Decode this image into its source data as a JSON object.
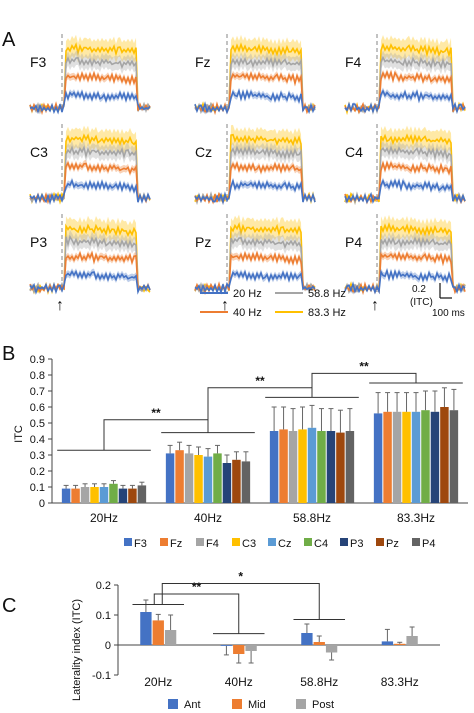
{
  "panel_labels": {
    "a": "A",
    "b": "B",
    "c": "C"
  },
  "panel_a": {
    "electrodes": [
      [
        "F3",
        "Fz",
        "F4"
      ],
      [
        "C3",
        "Cz",
        "C4"
      ],
      [
        "P3",
        "Pz",
        "P4"
      ]
    ],
    "legend": [
      {
        "label": "20 Hz",
        "color": "#4472c4"
      },
      {
        "label": "40 Hz",
        "color": "#ed7d31"
      },
      {
        "label": "58.8 Hz",
        "color": "#a5a5a5"
      },
      {
        "label": "83.3 Hz",
        "color": "#ffc000"
      }
    ],
    "scalebar": {
      "value": "0.2",
      "unit": "(ITC)",
      "time": "100 ms"
    },
    "onset_marker": "↑"
  },
  "chart_data": [
    {
      "type": "bar",
      "panel": "B",
      "ylabel": "ITC",
      "ylim": [
        0,
        0.9
      ],
      "yticks": [
        "0",
        "0.1",
        "0.2",
        "0.3",
        "0.4",
        "0.5",
        "0.6",
        "0.7",
        "0.8",
        "0.9"
      ],
      "categories": [
        "20Hz",
        "40Hz",
        "58.8Hz",
        "83.3Hz"
      ],
      "series": [
        {
          "name": "F3",
          "color": "#4472c4",
          "values": [
            0.09,
            0.31,
            0.45,
            0.56
          ],
          "errors": [
            0.02,
            0.05,
            0.15,
            0.13
          ]
        },
        {
          "name": "Fz",
          "color": "#ed7d31",
          "values": [
            0.09,
            0.33,
            0.46,
            0.57
          ],
          "errors": [
            0.02,
            0.05,
            0.14,
            0.12
          ]
        },
        {
          "name": "F4",
          "color": "#a5a5a5",
          "values": [
            0.1,
            0.31,
            0.45,
            0.57
          ],
          "errors": [
            0.02,
            0.05,
            0.14,
            0.12
          ]
        },
        {
          "name": "C3",
          "color": "#ffc000",
          "values": [
            0.1,
            0.3,
            0.46,
            0.57
          ],
          "errors": [
            0.02,
            0.05,
            0.14,
            0.12
          ]
        },
        {
          "name": "Cz",
          "color": "#5b9bd5",
          "values": [
            0.1,
            0.29,
            0.47,
            0.57
          ],
          "errors": [
            0.02,
            0.05,
            0.14,
            0.12
          ]
        },
        {
          "name": "C4",
          "color": "#70ad47",
          "values": [
            0.12,
            0.31,
            0.45,
            0.58
          ],
          "errors": [
            0.02,
            0.05,
            0.14,
            0.12
          ]
        },
        {
          "name": "P3",
          "color": "#264478",
          "values": [
            0.09,
            0.25,
            0.45,
            0.57
          ],
          "errors": [
            0.02,
            0.05,
            0.14,
            0.13
          ]
        },
        {
          "name": "Pz",
          "color": "#9e480e",
          "values": [
            0.09,
            0.27,
            0.44,
            0.6
          ],
          "errors": [
            0.02,
            0.05,
            0.14,
            0.12
          ]
        },
        {
          "name": "P4",
          "color": "#636363",
          "values": [
            0.11,
            0.26,
            0.45,
            0.58
          ],
          "errors": [
            0.02,
            0.06,
            0.14,
            0.13
          ]
        }
      ],
      "significance": [
        {
          "label": "**",
          "between": [
            "20Hz",
            "40Hz"
          ]
        },
        {
          "label": "**",
          "between": [
            "40Hz",
            "58.8Hz"
          ]
        },
        {
          "label": "**",
          "between": [
            "58.8Hz",
            "83.3Hz"
          ]
        }
      ]
    },
    {
      "type": "bar",
      "panel": "C",
      "ylabel": "Laterality index (ITC)",
      "ylim": [
        -0.1,
        0.2
      ],
      "yticks": [
        "-0.1",
        "0",
        "0.1",
        "0.2"
      ],
      "categories": [
        "20Hz",
        "40Hz",
        "58.8Hz",
        "83.3Hz"
      ],
      "series": [
        {
          "name": "Ant",
          "color": "#4472c4",
          "values": [
            0.11,
            -0.003,
            0.04,
            0.012
          ],
          "errors": [
            0.04,
            0.03,
            0.03,
            0.04
          ]
        },
        {
          "name": "Mid",
          "color": "#ed7d31",
          "values": [
            0.082,
            -0.03,
            0.01,
            0.004
          ],
          "errors": [
            0.02,
            0.03,
            0.02,
            0.005
          ]
        },
        {
          "name": "Post",
          "color": "#a5a5a5",
          "values": [
            0.05,
            -0.02,
            -0.025,
            0.03
          ],
          "errors": [
            0.05,
            0.04,
            0.025,
            0.03
          ]
        }
      ],
      "significance": [
        {
          "label": "**",
          "between": [
            "20Hz",
            "40Hz"
          ]
        },
        {
          "label": "*",
          "between": [
            "20Hz",
            "58.8Hz"
          ]
        }
      ]
    }
  ]
}
